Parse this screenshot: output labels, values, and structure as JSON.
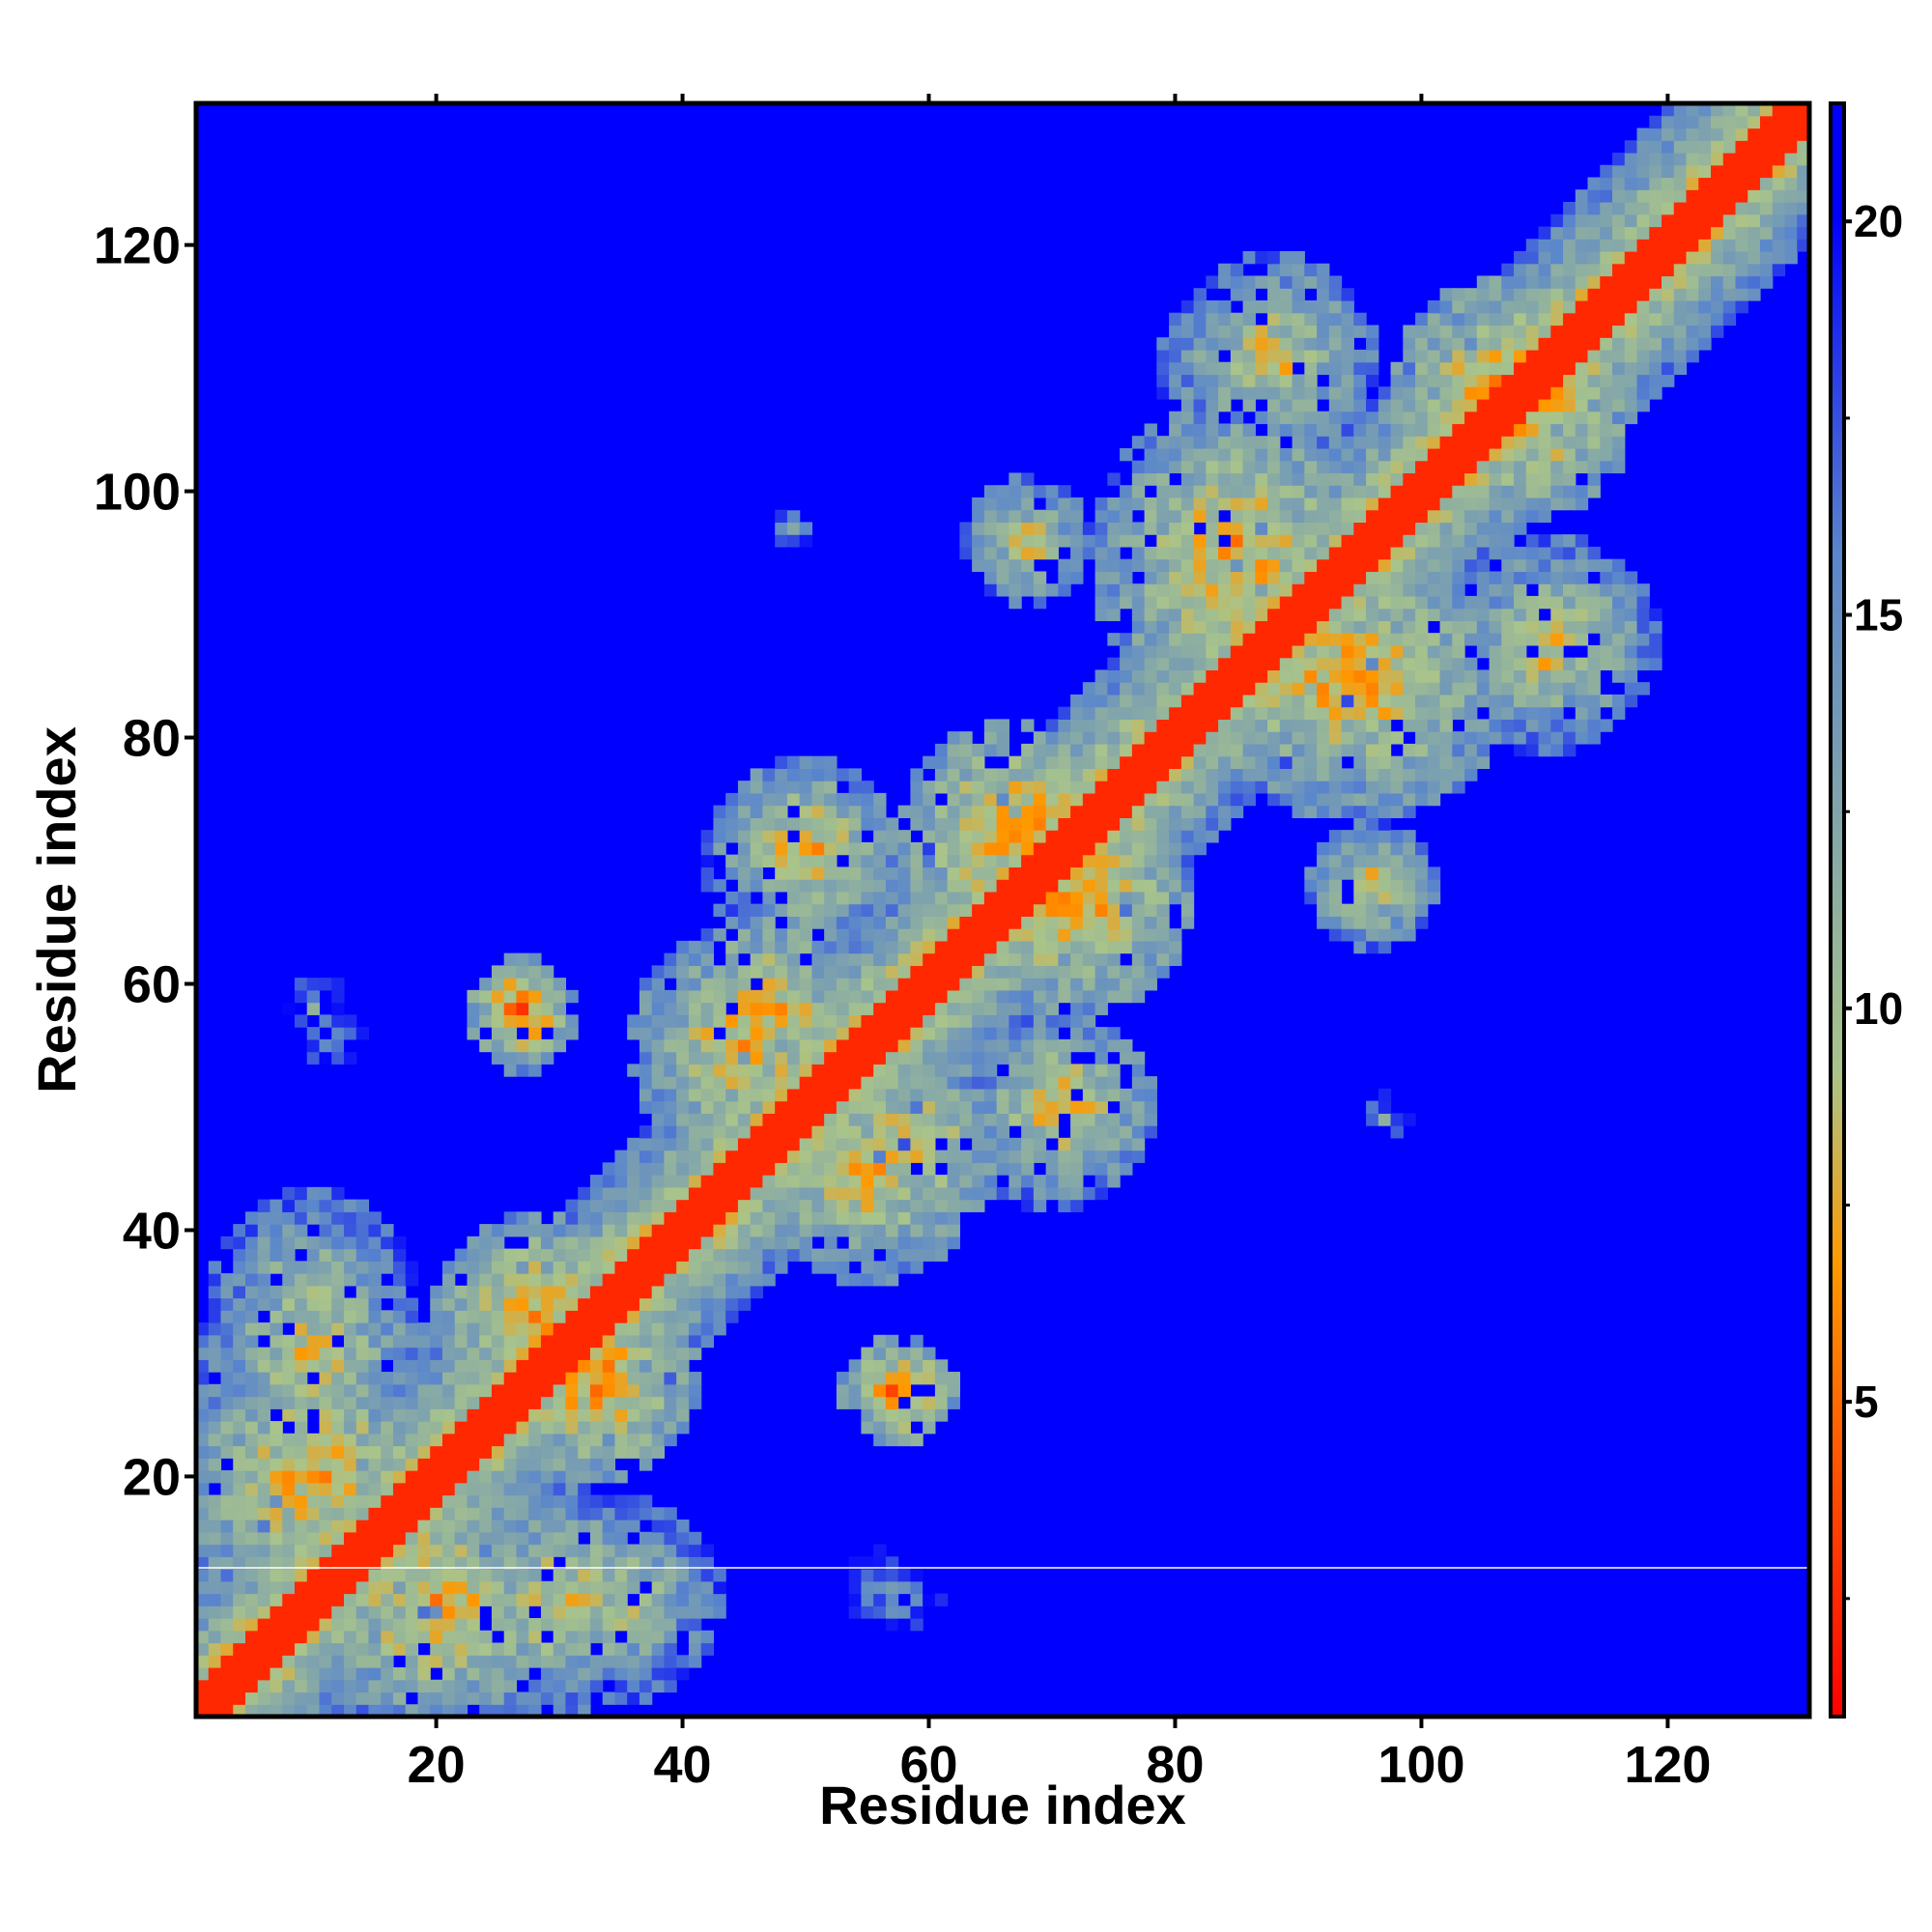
{
  "chart_data": {
    "type": "heatmap",
    "title": "",
    "xlabel": "Residue index",
    "ylabel": "Residue index",
    "xlim": [
      1,
      131
    ],
    "ylim": [
      1,
      131
    ],
    "x_ticks": [
      20,
      40,
      60,
      80,
      100,
      120
    ],
    "y_ticks": [
      20,
      40,
      60,
      80,
      100,
      120
    ],
    "colorbar": {
      "range": [
        1,
        21.5
      ],
      "ticks": [
        5,
        10,
        15,
        20
      ],
      "colors": {
        "low": "#ff0000",
        "mid_low": "#ff9900",
        "mid": "#a9c48a",
        "mid_high": "#5a86cc",
        "high": "#0000ff"
      }
    },
    "background_value": 21.5,
    "diagonal_band": {
      "value": 2.5,
      "half_width_residues": 2
    },
    "contact_clusters": [
      {
        "x": 10,
        "y": 20,
        "radius": 11,
        "core_value": 7
      },
      {
        "x": 10,
        "y": 35,
        "radius": 8,
        "core_value": 9
      },
      {
        "x": 28,
        "y": 33,
        "radius": 8,
        "core_value": 6
      },
      {
        "x": 30,
        "y": 10,
        "radius": 9,
        "core_value": 8
      },
      {
        "x": 27,
        "y": 58,
        "radius": 4,
        "core_value": 5
      },
      {
        "x": 10,
        "y": 58,
        "radius": 3,
        "core_value": 13
      },
      {
        "x": 49,
        "y": 97,
        "radius": 2,
        "core_value": 14
      },
      {
        "x": 56,
        "y": 11,
        "radius": 3,
        "core_value": 13
      },
      {
        "x": 57,
        "y": 27,
        "radius": 4,
        "core_value": 6
      },
      {
        "x": 45,
        "y": 55,
        "radius": 9,
        "core_value": 7
      },
      {
        "x": 49,
        "y": 70,
        "radius": 7,
        "core_value": 9
      },
      {
        "x": 58,
        "y": 47,
        "radius": 8,
        "core_value": 7
      },
      {
        "x": 67,
        "y": 72,
        "radius": 9,
        "core_value": 6
      },
      {
        "x": 71,
        "y": 50,
        "radius": 7,
        "core_value": 7
      },
      {
        "x": 67,
        "y": 97,
        "radius": 3,
        "core_value": 9
      },
      {
        "x": 85,
        "y": 93,
        "radius": 11,
        "core_value": 7
      },
      {
        "x": 86,
        "y": 110,
        "radius": 7,
        "core_value": 9
      },
      {
        "x": 96,
        "y": 85,
        "radius": 11,
        "core_value": 7
      },
      {
        "x": 108,
        "y": 107,
        "radius": 9,
        "core_value": 6
      },
      {
        "x": 111,
        "y": 88,
        "radius": 8,
        "core_value": 8
      },
      {
        "x": 96,
        "y": 68,
        "radius": 5,
        "core_value": 8
      },
      {
        "x": 97,
        "y": 49,
        "radius": 2,
        "core_value": 13
      },
      {
        "x": 125,
        "y": 125,
        "radius": 6,
        "core_value": 9
      }
    ]
  }
}
